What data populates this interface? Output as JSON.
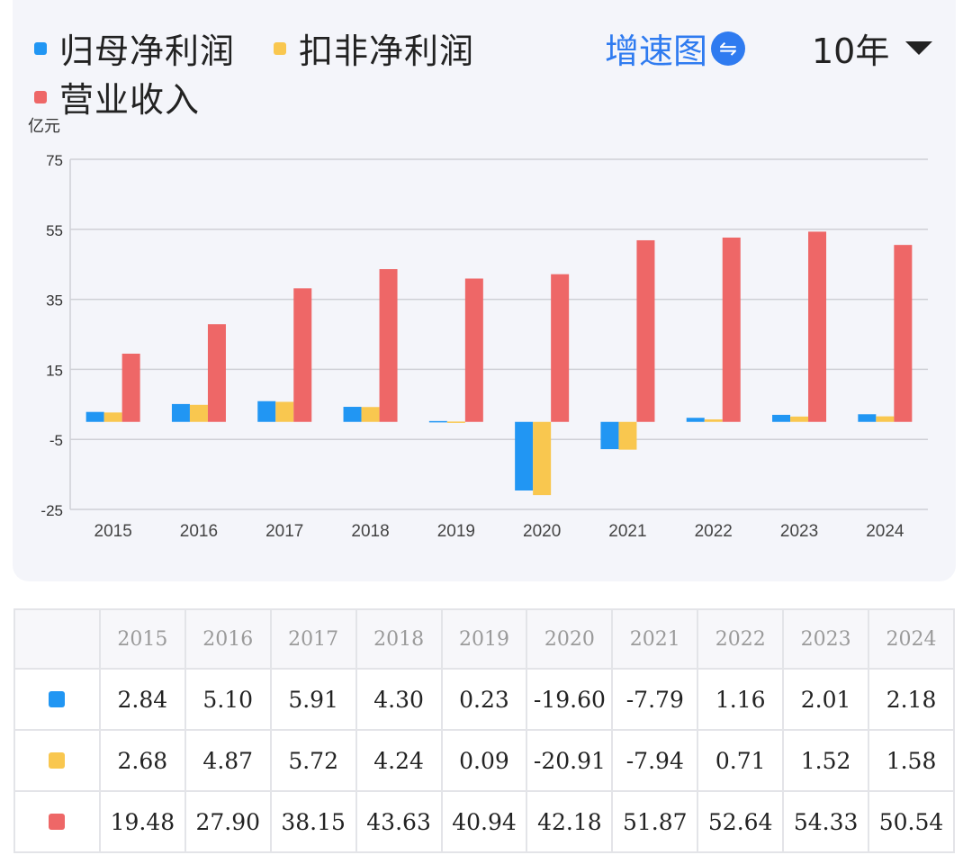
{
  "header": {
    "legend": [
      {
        "label": "归母净利润",
        "color": "#2196f3"
      },
      {
        "label": "扣非净利润",
        "color": "#f9c74f"
      },
      {
        "label": "营业收入",
        "color": "#ee6767"
      }
    ],
    "growth_toggle_label": "增速图",
    "growth_toggle_icon": "⇋",
    "period_label": "10年"
  },
  "chart_data": {
    "type": "bar",
    "unit_label": "亿元",
    "categories": [
      "2015",
      "2016",
      "2017",
      "2018",
      "2019",
      "2020",
      "2021",
      "2022",
      "2023",
      "2024"
    ],
    "series": [
      {
        "name": "归母净利润",
        "color": "#2196f3",
        "values": [
          2.84,
          5.1,
          5.91,
          4.3,
          0.23,
          -19.6,
          -7.79,
          1.16,
          2.01,
          2.18
        ]
      },
      {
        "name": "扣非净利润",
        "color": "#f9c74f",
        "values": [
          2.68,
          4.87,
          5.72,
          4.24,
          0.09,
          -20.91,
          -7.94,
          0.71,
          1.52,
          1.58
        ]
      },
      {
        "name": "营业收入",
        "color": "#ee6767",
        "values": [
          19.48,
          27.9,
          38.15,
          43.63,
          40.94,
          42.18,
          51.87,
          52.64,
          54.33,
          50.54
        ]
      }
    ],
    "yticks": [
      "75",
      "55",
      "35",
      "15",
      "-5",
      "-25"
    ],
    "ylim": [
      -25,
      75
    ],
    "grid": true
  },
  "table": {
    "years": [
      "2015",
      "2016",
      "2017",
      "2018",
      "2019",
      "2020",
      "2021",
      "2022",
      "2023",
      "2024"
    ],
    "rows": [
      {
        "color": "#2196f3",
        "values": [
          "2.84",
          "5.10",
          "5.91",
          "4.30",
          "0.23",
          "-19.60",
          "-7.79",
          "1.16",
          "2.01",
          "2.18"
        ]
      },
      {
        "color": "#f9c74f",
        "values": [
          "2.68",
          "4.87",
          "5.72",
          "4.24",
          "0.09",
          "-20.91",
          "-7.94",
          "0.71",
          "1.52",
          "1.58"
        ]
      },
      {
        "color": "#ee6767",
        "values": [
          "19.48",
          "27.90",
          "38.15",
          "43.63",
          "40.94",
          "42.18",
          "51.87",
          "52.64",
          "54.33",
          "50.54"
        ]
      }
    ]
  }
}
